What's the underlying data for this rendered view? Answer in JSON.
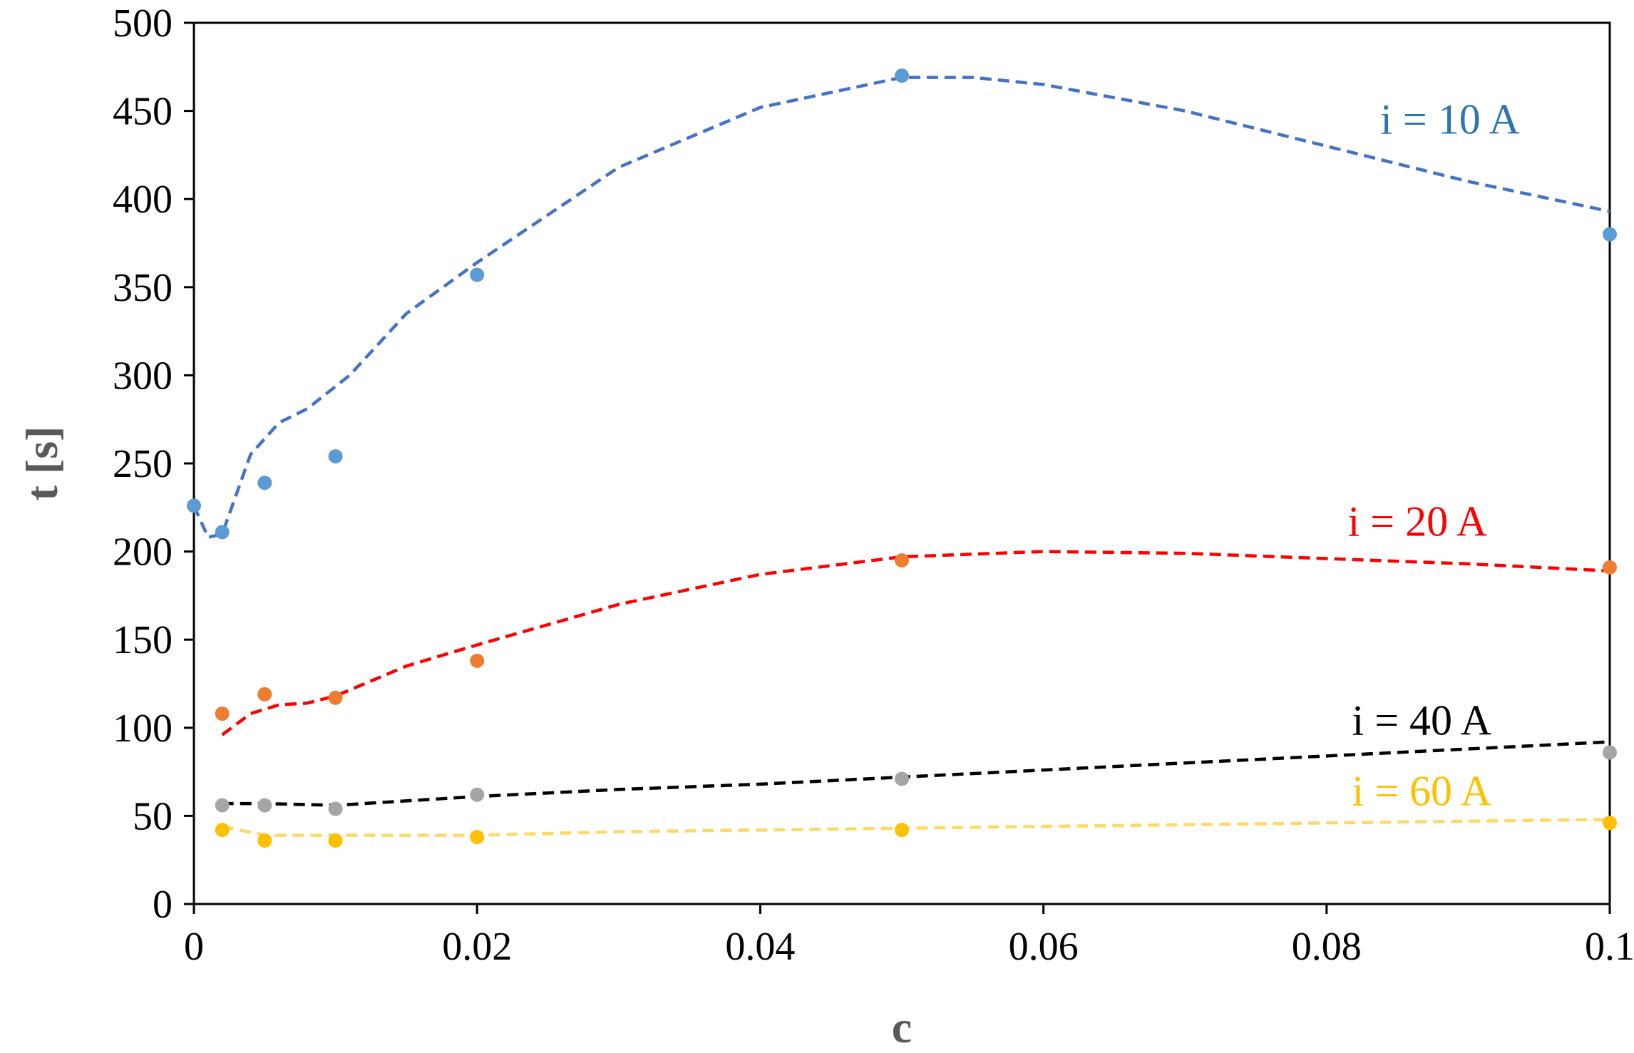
{
  "chart_data": {
    "type": "scatter",
    "title": "",
    "xlabel": "c",
    "ylabel": "t [s]",
    "xlim": [
      0,
      0.1
    ],
    "ylim": [
      0,
      500
    ],
    "x_ticks": [
      0,
      0.02,
      0.04,
      0.06,
      0.08,
      0.1
    ],
    "x_tick_labels": [
      "0",
      "0.02",
      "0.04",
      "0.06",
      "0.08",
      "0.1"
    ],
    "y_ticks": [
      0,
      50,
      100,
      150,
      200,
      250,
      300,
      350,
      400,
      450,
      500
    ],
    "y_tick_labels": [
      "0",
      "50",
      "100",
      "150",
      "200",
      "250",
      "300",
      "350",
      "400",
      "450",
      "500"
    ],
    "grid": false,
    "legend": "none",
    "series": [
      {
        "name": "i = 10 A",
        "marker_color": "#5b9bd5",
        "line_color": "#4472c4",
        "label_color": "#2e75b6",
        "points": [
          {
            "x": 0,
            "y": 226
          },
          {
            "x": 0.002,
            "y": 211
          },
          {
            "x": 0.005,
            "y": 239
          },
          {
            "x": 0.01,
            "y": 254
          },
          {
            "x": 0.02,
            "y": 357
          },
          {
            "x": 0.05,
            "y": 470
          },
          {
            "x": 0.1,
            "y": 380
          }
        ],
        "trend": [
          {
            "x": 0,
            "y": 226
          },
          {
            "x": 0.001,
            "y": 208
          },
          {
            "x": 0.002,
            "y": 210
          },
          {
            "x": 0.004,
            "y": 255
          },
          {
            "x": 0.006,
            "y": 273
          },
          {
            "x": 0.008,
            "y": 281
          },
          {
            "x": 0.011,
            "y": 300
          },
          {
            "x": 0.015,
            "y": 335
          },
          {
            "x": 0.02,
            "y": 364
          },
          {
            "x": 0.03,
            "y": 418
          },
          {
            "x": 0.04,
            "y": 452
          },
          {
            "x": 0.05,
            "y": 469
          },
          {
            "x": 0.055,
            "y": 469
          },
          {
            "x": 0.06,
            "y": 465
          },
          {
            "x": 0.07,
            "y": 450
          },
          {
            "x": 0.08,
            "y": 430
          },
          {
            "x": 0.09,
            "y": 410
          },
          {
            "x": 0.1,
            "y": 393
          }
        ]
      },
      {
        "name": "i = 20 A",
        "marker_color": "#ed7d31",
        "line_color": "#ff0000",
        "label_color": "#ff0000",
        "points": [
          {
            "x": 0.002,
            "y": 108
          },
          {
            "x": 0.005,
            "y": 119
          },
          {
            "x": 0.01,
            "y": 117
          },
          {
            "x": 0.02,
            "y": 138
          },
          {
            "x": 0.05,
            "y": 195
          },
          {
            "x": 0.1,
            "y": 191
          }
        ],
        "trend": [
          {
            "x": 0.002,
            "y": 96
          },
          {
            "x": 0.004,
            "y": 108
          },
          {
            "x": 0.006,
            "y": 113
          },
          {
            "x": 0.008,
            "y": 114
          },
          {
            "x": 0.01,
            "y": 118
          },
          {
            "x": 0.015,
            "y": 135
          },
          {
            "x": 0.02,
            "y": 147
          },
          {
            "x": 0.03,
            "y": 170
          },
          {
            "x": 0.04,
            "y": 187
          },
          {
            "x": 0.05,
            "y": 197
          },
          {
            "x": 0.06,
            "y": 200
          },
          {
            "x": 0.07,
            "y": 199
          },
          {
            "x": 0.08,
            "y": 196
          },
          {
            "x": 0.09,
            "y": 193
          },
          {
            "x": 0.1,
            "y": 189
          }
        ]
      },
      {
        "name": "i = 40 A",
        "marker_color": "#a5a5a5",
        "line_color": "#000000",
        "label_color": "#000000",
        "points": [
          {
            "x": 0.002,
            "y": 56
          },
          {
            "x": 0.005,
            "y": 56
          },
          {
            "x": 0.01,
            "y": 54
          },
          {
            "x": 0.02,
            "y": 62
          },
          {
            "x": 0.05,
            "y": 71
          },
          {
            "x": 0.1,
            "y": 86
          }
        ],
        "trend": [
          {
            "x": 0.002,
            "y": 57
          },
          {
            "x": 0.005,
            "y": 57
          },
          {
            "x": 0.01,
            "y": 56
          },
          {
            "x": 0.02,
            "y": 61
          },
          {
            "x": 0.03,
            "y": 65
          },
          {
            "x": 0.04,
            "y": 68
          },
          {
            "x": 0.05,
            "y": 72
          },
          {
            "x": 0.06,
            "y": 76
          },
          {
            "x": 0.07,
            "y": 80
          },
          {
            "x": 0.08,
            "y": 84
          },
          {
            "x": 0.09,
            "y": 88
          },
          {
            "x": 0.1,
            "y": 92
          }
        ]
      },
      {
        "name": "i = 60 A",
        "marker_color": "#ffc000",
        "line_color": "#ffd966",
        "label_color": "#ffc000",
        "points": [
          {
            "x": 0.002,
            "y": 42
          },
          {
            "x": 0.005,
            "y": 36
          },
          {
            "x": 0.01,
            "y": 36
          },
          {
            "x": 0.02,
            "y": 38
          },
          {
            "x": 0.05,
            "y": 42
          },
          {
            "x": 0.1,
            "y": 46
          }
        ],
        "trend": [
          {
            "x": 0.002,
            "y": 44
          },
          {
            "x": 0.005,
            "y": 39
          },
          {
            "x": 0.01,
            "y": 39
          },
          {
            "x": 0.02,
            "y": 39
          },
          {
            "x": 0.03,
            "y": 41
          },
          {
            "x": 0.04,
            "y": 42
          },
          {
            "x": 0.05,
            "y": 43
          },
          {
            "x": 0.06,
            "y": 44
          },
          {
            "x": 0.07,
            "y": 45
          },
          {
            "x": 0.08,
            "y": 46
          },
          {
            "x": 0.09,
            "y": 47
          },
          {
            "x": 0.1,
            "y": 48
          }
        ]
      }
    ]
  }
}
